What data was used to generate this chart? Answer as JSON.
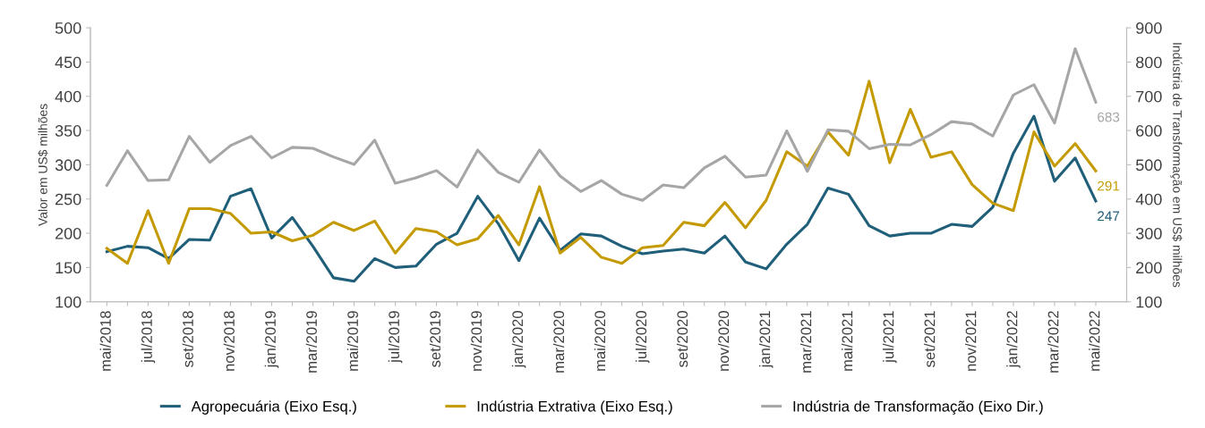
{
  "chart_data": {
    "type": "line",
    "categories": [
      "mai/2018",
      null,
      "jul/2018",
      null,
      "set/2018",
      null,
      "nov/2018",
      null,
      "jan/2019",
      null,
      "mar/2019",
      null,
      "mai/2019",
      null,
      "jul/2019",
      null,
      "set/2019",
      null,
      "nov/2019",
      null,
      "jan/2020",
      null,
      "mar/2020",
      null,
      "mai/2020",
      null,
      "jul/2020",
      null,
      "set/2020",
      null,
      "nov/2020",
      null,
      "jan/2021",
      null,
      "mar/2021",
      null,
      "mai/2021",
      null,
      "jul/2021",
      null,
      "set/2021",
      null,
      "nov/2021",
      null,
      "jan/2022",
      null,
      "mar/2022",
      null,
      "mai/2022"
    ],
    "series": [
      {
        "name": "Agropecuária (Eixo Esq.)",
        "color": "#1f5f7a",
        "values": [
          173,
          181,
          179,
          163,
          191,
          190,
          254,
          265,
          193,
          223,
          181,
          135,
          130,
          163,
          150,
          152,
          184,
          200,
          254,
          214,
          160,
          222,
          175,
          199,
          196,
          181,
          170,
          174,
          177,
          171,
          196,
          158,
          148,
          184,
          213,
          266,
          257,
          211,
          196,
          200,
          200,
          213,
          210,
          238,
          317,
          371,
          276,
          310,
          247
        ],
        "value_labels": [
          null,
          null,
          null,
          null,
          null,
          null,
          null,
          null,
          null,
          null,
          null,
          null,
          null,
          null,
          null,
          null,
          null,
          null,
          null,
          null,
          null,
          null,
          null,
          null,
          null,
          null,
          null,
          null,
          null,
          null,
          null,
          null,
          null,
          null,
          null,
          null,
          null,
          null,
          null,
          null,
          null,
          null,
          null,
          null,
          null,
          null,
          null,
          null,
          "247"
        ]
      },
      {
        "name": "Indústria Extrativa (Eixo Esq.)",
        "color": "#c49a00",
        "values": [
          178,
          156,
          233,
          156,
          236,
          236,
          229,
          200,
          202,
          189,
          197,
          216,
          204,
          218,
          171,
          207,
          202,
          183,
          192,
          226,
          183,
          268,
          171,
          194,
          165,
          156,
          179,
          182,
          216,
          211,
          245,
          208,
          248,
          319,
          298,
          348,
          314,
          422,
          303,
          381,
          311,
          319,
          271,
          244,
          233,
          348,
          298,
          331,
          291
        ],
        "value_labels": [
          null,
          null,
          null,
          null,
          null,
          null,
          null,
          null,
          null,
          null,
          null,
          null,
          null,
          null,
          null,
          null,
          null,
          null,
          null,
          null,
          null,
          null,
          null,
          null,
          null,
          null,
          null,
          null,
          null,
          null,
          null,
          null,
          null,
          null,
          null,
          null,
          null,
          null,
          null,
          null,
          null,
          null,
          null,
          null,
          null,
          null,
          null,
          null,
          "291"
        ]
      },
      {
        "name": "Indústria de Transformação (Eixo Dir.)",
        "color": "#a6a6a6",
        "axis": "y2",
        "values": [
          440,
          541,
          454,
          456,
          583,
          507,
          556,
          583,
          520,
          551,
          548,
          523,
          501,
          572,
          446,
          462,
          483,
          435,
          543,
          478,
          449,
          543,
          467,
          422,
          454,
          414,
          396,
          441,
          433,
          491,
          525,
          464,
          470,
          599,
          481,
          602,
          598,
          547,
          560,
          558,
          588,
          626,
          619,
          584,
          704,
          734,
          622,
          839,
          683
        ],
        "value_labels": [
          null,
          null,
          null,
          null,
          null,
          null,
          null,
          null,
          null,
          null,
          null,
          null,
          null,
          null,
          null,
          null,
          null,
          null,
          null,
          null,
          null,
          null,
          null,
          null,
          null,
          null,
          null,
          null,
          null,
          null,
          null,
          null,
          null,
          null,
          null,
          null,
          null,
          null,
          null,
          null,
          null,
          null,
          null,
          null,
          null,
          null,
          null,
          null,
          "683"
        ]
      }
    ],
    "ylabel": "Valor em US$ milhões",
    "y2label": "Indústria de Transformação em US$ milhões",
    "ylim": [
      100,
      500
    ],
    "yticks": [
      100,
      150,
      200,
      250,
      300,
      350,
      400,
      450,
      500
    ],
    "y2lim": [
      100,
      900
    ],
    "y2ticks": [
      100,
      200,
      300,
      400,
      500,
      600,
      700,
      800,
      900
    ],
    "legend": "bottom",
    "grid": false,
    "marker": "none",
    "line_style": "solid"
  }
}
